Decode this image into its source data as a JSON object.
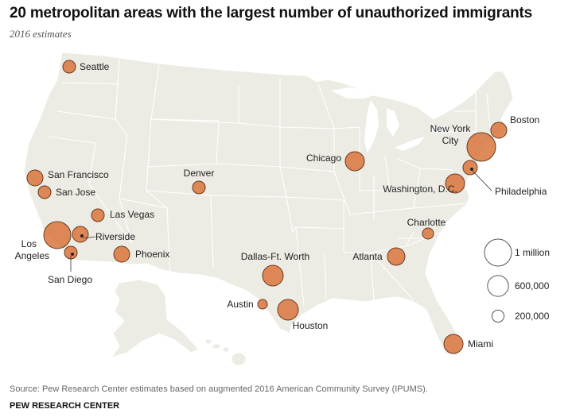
{
  "title": "20 metropolitan areas with the largest number of unauthorized immigrants",
  "subtitle": "2016 estimates",
  "source": "Source: Pew Research Center estimates based on augmented 2016 American Community Survey (IPUMS).",
  "organization": "PEW RESEARCH CENTER",
  "colors": {
    "land": "#ecebe4",
    "border": "#ffffff",
    "bubble": "#d9763c",
    "bubble_stroke": "#6b3a1f"
  },
  "legend": [
    {
      "label": "1 million",
      "value": 1000000
    },
    {
      "label": "600,000",
      "value": 600000
    },
    {
      "label": "200,000",
      "value": 200000
    }
  ],
  "metros": [
    {
      "id": "seattle",
      "name": "Seattle"
    },
    {
      "id": "san-francisco",
      "name": "San Francisco"
    },
    {
      "id": "san-jose",
      "name": "San Jose"
    },
    {
      "id": "los-angeles",
      "name": "Los Angeles"
    },
    {
      "id": "riverside",
      "name": "Riverside"
    },
    {
      "id": "san-diego",
      "name": "San Diego"
    },
    {
      "id": "las-vegas",
      "name": "Las Vegas"
    },
    {
      "id": "phoenix",
      "name": "Phoenix"
    },
    {
      "id": "denver",
      "name": "Denver"
    },
    {
      "id": "dallas",
      "name": "Dallas-Ft. Worth"
    },
    {
      "id": "austin",
      "name": "Austin"
    },
    {
      "id": "houston",
      "name": "Houston"
    },
    {
      "id": "chicago",
      "name": "Chicago"
    },
    {
      "id": "atlanta",
      "name": "Atlanta"
    },
    {
      "id": "charlotte",
      "name": "Charlotte"
    },
    {
      "id": "miami",
      "name": "Miami"
    },
    {
      "id": "washington",
      "name": "Washington, D.C."
    },
    {
      "id": "philadelphia",
      "name": "Philadelphia"
    },
    {
      "id": "new-york",
      "name": "New York City"
    },
    {
      "id": "boston",
      "name": "Boston"
    }
  ]
}
